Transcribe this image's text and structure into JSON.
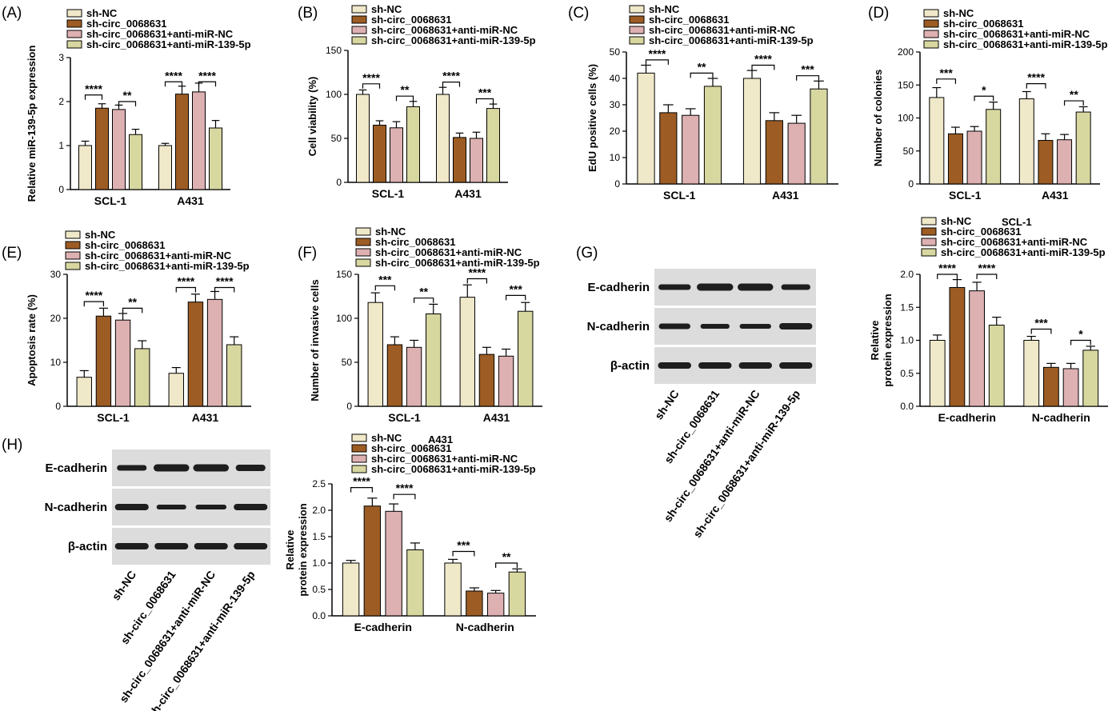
{
  "colors": {
    "sh_nc": "#efe8c9",
    "sh_circ": "#9c5c24",
    "anti_nc": "#ddb0b2",
    "anti_mir": "#d7d7a0",
    "axis": "#000000",
    "blot_bg": "#dcdcdc",
    "band": "#1e1e1e"
  },
  "legend_labels": [
    "sh-NC",
    "sh-circ_0068631",
    "sh-circ_0068631+anti-miR-NC",
    "sh-circ_0068631+anti-miR-139-5p"
  ],
  "chart_data": [
    {
      "id": "A",
      "letter": "(A)",
      "type": "bar",
      "categories": [
        "SCL-1",
        "A431"
      ],
      "series": [
        {
          "name": "sh-NC",
          "values": [
            1.0,
            1.0
          ],
          "errors": [
            0.1,
            0.05
          ]
        },
        {
          "name": "sh-circ_0068631",
          "values": [
            1.85,
            2.17
          ],
          "errors": [
            0.1,
            0.18
          ]
        },
        {
          "name": "sh-circ_0068631+anti-miR-NC",
          "values": [
            1.82,
            2.22
          ],
          "errors": [
            0.1,
            0.2
          ]
        },
        {
          "name": "sh-circ_0068631+anti-miR-139-5p",
          "values": [
            1.25,
            1.4
          ],
          "errors": [
            0.12,
            0.17
          ]
        }
      ],
      "ylabel": "Relative miR-139-5p expression",
      "ylim": [
        0,
        3
      ],
      "yticks": [
        0,
        1,
        2,
        3
      ],
      "sig": [
        {
          "cat": 0,
          "a": 0,
          "b": 1,
          "y": 2.15,
          "label": "****"
        },
        {
          "cat": 0,
          "a": 2,
          "b": 3,
          "y": 2.0,
          "label": "**"
        },
        {
          "cat": 1,
          "a": 0,
          "b": 1,
          "y": 2.45,
          "label": "****"
        },
        {
          "cat": 1,
          "a": 2,
          "b": 3,
          "y": 2.45,
          "label": "****"
        }
      ]
    },
    {
      "id": "B",
      "letter": "(B)",
      "type": "bar",
      "categories": [
        "SCL-1",
        "A431"
      ],
      "series": [
        {
          "name": "sh-NC",
          "values": [
            100,
            100
          ],
          "errors": [
            5,
            8
          ]
        },
        {
          "name": "sh-circ_0068631",
          "values": [
            65,
            51
          ],
          "errors": [
            5,
            5
          ]
        },
        {
          "name": "sh-circ_0068631+anti-miR-NC",
          "values": [
            62,
            50
          ],
          "errors": [
            7,
            7
          ]
        },
        {
          "name": "sh-circ_0068631+anti-miR-139-5p",
          "values": [
            86,
            84
          ],
          "errors": [
            6,
            5
          ]
        }
      ],
      "ylabel": "Cell viability (%)",
      "ylim": [
        0,
        150
      ],
      "yticks": [
        0,
        50,
        100,
        150
      ],
      "sig": [
        {
          "cat": 0,
          "a": 0,
          "b": 1,
          "y": 112,
          "label": "****"
        },
        {
          "cat": 0,
          "a": 2,
          "b": 3,
          "y": 98,
          "label": "**"
        },
        {
          "cat": 1,
          "a": 0,
          "b": 1,
          "y": 114,
          "label": "****"
        },
        {
          "cat": 1,
          "a": 2,
          "b": 3,
          "y": 95,
          "label": "***"
        }
      ]
    },
    {
      "id": "C",
      "letter": "(C)",
      "type": "bar",
      "categories": [
        "SCL-1",
        "A431"
      ],
      "series": [
        {
          "name": "sh-NC",
          "values": [
            42,
            40
          ],
          "errors": [
            3,
            3
          ]
        },
        {
          "name": "sh-circ_0068631",
          "values": [
            27,
            24
          ],
          "errors": [
            3,
            3
          ]
        },
        {
          "name": "sh-circ_0068631+anti-miR-NC",
          "values": [
            26,
            23
          ],
          "errors": [
            2.5,
            3
          ]
        },
        {
          "name": "sh-circ_0068631+anti-miR-139-5p",
          "values": [
            37,
            36
          ],
          "errors": [
            3,
            3
          ]
        }
      ],
      "ylabel": "EdU positive cells (%)",
      "ylim": [
        0,
        50
      ],
      "yticks": [
        0,
        10,
        20,
        30,
        40,
        50
      ],
      "sig": [
        {
          "cat": 0,
          "a": 0,
          "b": 1,
          "y": 47,
          "label": "****"
        },
        {
          "cat": 0,
          "a": 2,
          "b": 3,
          "y": 42,
          "label": "**"
        },
        {
          "cat": 1,
          "a": 0,
          "b": 1,
          "y": 45,
          "label": "****"
        },
        {
          "cat": 1,
          "a": 2,
          "b": 3,
          "y": 41,
          "label": "***"
        }
      ]
    },
    {
      "id": "D",
      "letter": "(D)",
      "type": "bar",
      "categories": [
        "SCL-1",
        "A431"
      ],
      "series": [
        {
          "name": "sh-NC",
          "values": [
            131,
            129
          ],
          "errors": [
            15,
            11
          ]
        },
        {
          "name": "sh-circ_0068631",
          "values": [
            76,
            66
          ],
          "errors": [
            10,
            10
          ]
        },
        {
          "name": "sh-circ_0068631+anti-miR-NC",
          "values": [
            80,
            67
          ],
          "errors": [
            7,
            8
          ]
        },
        {
          "name": "sh-circ_0068631+anti-miR-139-5p",
          "values": [
            113,
            109
          ],
          "errors": [
            11,
            8
          ]
        }
      ],
      "ylabel": "Number of colonies",
      "ylim": [
        0,
        200
      ],
      "yticks": [
        0,
        50,
        100,
        150,
        200
      ],
      "sig": [
        {
          "cat": 0,
          "a": 0,
          "b": 1,
          "y": 159,
          "label": "***"
        },
        {
          "cat": 0,
          "a": 2,
          "b": 3,
          "y": 133,
          "label": "*"
        },
        {
          "cat": 1,
          "a": 0,
          "b": 1,
          "y": 152,
          "label": "****"
        },
        {
          "cat": 1,
          "a": 2,
          "b": 3,
          "y": 126,
          "label": "**"
        }
      ]
    },
    {
      "id": "E",
      "letter": "(E)",
      "type": "bar",
      "categories": [
        "SCL-1",
        "A431"
      ],
      "series": [
        {
          "name": "sh-NC",
          "values": [
            6.6,
            7.5
          ],
          "errors": [
            1.5,
            1.3
          ]
        },
        {
          "name": "sh-circ_0068631",
          "values": [
            20.5,
            23.7
          ],
          "errors": [
            1.8,
            1.8
          ]
        },
        {
          "name": "sh-circ_0068631+anti-miR-NC",
          "values": [
            19.6,
            24.3
          ],
          "errors": [
            1.5,
            1.8
          ]
        },
        {
          "name": "sh-circ_0068631+anti-miR-139-5p",
          "values": [
            13.1,
            14.0
          ],
          "errors": [
            1.8,
            1.8
          ]
        }
      ],
      "ylabel": "Apoptosis rate (%)",
      "ylim": [
        0,
        30
      ],
      "yticks": [
        0,
        10,
        20,
        30
      ],
      "sig": [
        {
          "cat": 0,
          "a": 0,
          "b": 1,
          "y": 23.8,
          "label": "****"
        },
        {
          "cat": 0,
          "a": 2,
          "b": 3,
          "y": 22.3,
          "label": "**"
        },
        {
          "cat": 1,
          "a": 0,
          "b": 1,
          "y": 27.0,
          "label": "****"
        },
        {
          "cat": 1,
          "a": 2,
          "b": 3,
          "y": 27.0,
          "label": "****"
        }
      ]
    },
    {
      "id": "F",
      "letter": "(F)",
      "type": "bar",
      "categories": [
        "SCL-1",
        "A431"
      ],
      "series": [
        {
          "name": "sh-NC",
          "values": [
            118,
            124
          ],
          "errors": [
            11,
            14
          ]
        },
        {
          "name": "sh-circ_0068631",
          "values": [
            70,
            59
          ],
          "errors": [
            9,
            8
          ]
        },
        {
          "name": "sh-circ_0068631+anti-miR-NC",
          "values": [
            67,
            57
          ],
          "errors": [
            8,
            8
          ]
        },
        {
          "name": "sh-circ_0068631+anti-miR-139-5p",
          "values": [
            105,
            108
          ],
          "errors": [
            11,
            10
          ]
        }
      ],
      "ylabel": "Number of invasive cells",
      "ylim": [
        0,
        150
      ],
      "yticks": [
        0,
        50,
        100,
        150
      ],
      "sig": [
        {
          "cat": 0,
          "a": 0,
          "b": 1,
          "y": 137,
          "label": "***"
        },
        {
          "cat": 0,
          "a": 2,
          "b": 3,
          "y": 123,
          "label": "**"
        },
        {
          "cat": 1,
          "a": 0,
          "b": 1,
          "y": 145,
          "label": "****"
        },
        {
          "cat": 1,
          "a": 2,
          "b": 3,
          "y": 126,
          "label": "***"
        }
      ]
    },
    {
      "id": "G2",
      "letter": "",
      "type": "bar",
      "title": "SCL-1",
      "categories": [
        "E-cadherin",
        "N-cadherin"
      ],
      "series": [
        {
          "name": "sh-NC",
          "values": [
            1.0,
            1.0
          ],
          "errors": [
            0.08,
            0.06
          ]
        },
        {
          "name": "sh-circ_0068631",
          "values": [
            1.8,
            0.59
          ],
          "errors": [
            0.12,
            0.06
          ]
        },
        {
          "name": "sh-circ_0068631+anti-miR-NC",
          "values": [
            1.75,
            0.57
          ],
          "errors": [
            0.13,
            0.08
          ]
        },
        {
          "name": "sh-circ_0068631+anti-miR-139-5p",
          "values": [
            1.23,
            0.85
          ],
          "errors": [
            0.12,
            0.06
          ]
        }
      ],
      "ylabel": "Relative protein expression",
      "ylim": [
        0,
        2.0
      ],
      "yticks": [
        0.0,
        0.5,
        1.0,
        1.5,
        2.0
      ],
      "ytick_decimals": 1,
      "sig": [
        {
          "cat": 0,
          "a": 0,
          "b": 1,
          "y": 2.0,
          "label": "****"
        },
        {
          "cat": 0,
          "a": 2,
          "b": 3,
          "y": 2.0,
          "label": "****"
        },
        {
          "cat": 1,
          "a": 0,
          "b": 1,
          "y": 1.17,
          "label": "***"
        },
        {
          "cat": 1,
          "a": 2,
          "b": 3,
          "y": 1.0,
          "label": "*"
        }
      ]
    },
    {
      "id": "H2",
      "letter": "",
      "type": "bar",
      "title": "A431",
      "categories": [
        "E-cadherin",
        "N-cadherin"
      ],
      "series": [
        {
          "name": "sh-NC",
          "values": [
            1.0,
            1.0
          ],
          "errors": [
            0.05,
            0.07
          ]
        },
        {
          "name": "sh-circ_0068631",
          "values": [
            2.08,
            0.47
          ],
          "errors": [
            0.15,
            0.06
          ]
        },
        {
          "name": "sh-circ_0068631+anti-miR-NC",
          "values": [
            1.98,
            0.43
          ],
          "errors": [
            0.14,
            0.05
          ]
        },
        {
          "name": "sh-circ_0068631+anti-miR-139-5p",
          "values": [
            1.25,
            0.83
          ],
          "errors": [
            0.13,
            0.06
          ]
        }
      ],
      "ylabel": "Relative protein expression",
      "ylim": [
        0,
        2.5
      ],
      "yticks": [
        0.0,
        0.5,
        1.0,
        1.5,
        2.0,
        2.5
      ],
      "ytick_decimals": 1,
      "sig": [
        {
          "cat": 0,
          "a": 0,
          "b": 1,
          "y": 2.43,
          "label": "****"
        },
        {
          "cat": 0,
          "a": 2,
          "b": 3,
          "y": 2.3,
          "label": "****"
        },
        {
          "cat": 1,
          "a": 0,
          "b": 1,
          "y": 1.22,
          "label": "***"
        },
        {
          "cat": 1,
          "a": 2,
          "b": 3,
          "y": 1.0,
          "label": "**"
        }
      ]
    }
  ],
  "blots": [
    {
      "id": "G",
      "letter": "(G)",
      "rows": [
        "E-cadherin",
        "N-cadherin",
        "β-actin"
      ],
      "lanes": [
        "sh-NC",
        "sh-circ_0068631",
        "sh-circ_0068631+anti-miR-NC",
        "sh-circ_0068631+anti-miR-139-5p"
      ]
    },
    {
      "id": "H",
      "letter": "(H)",
      "rows": [
        "E-cadherin",
        "N-cadherin",
        "β-actin"
      ],
      "lanes": [
        "sh-NC",
        "sh-circ_0068631",
        "sh-circ_0068631+anti-miR-NC",
        "sh-circ_0068631+anti-miR-139-5p"
      ]
    }
  ]
}
